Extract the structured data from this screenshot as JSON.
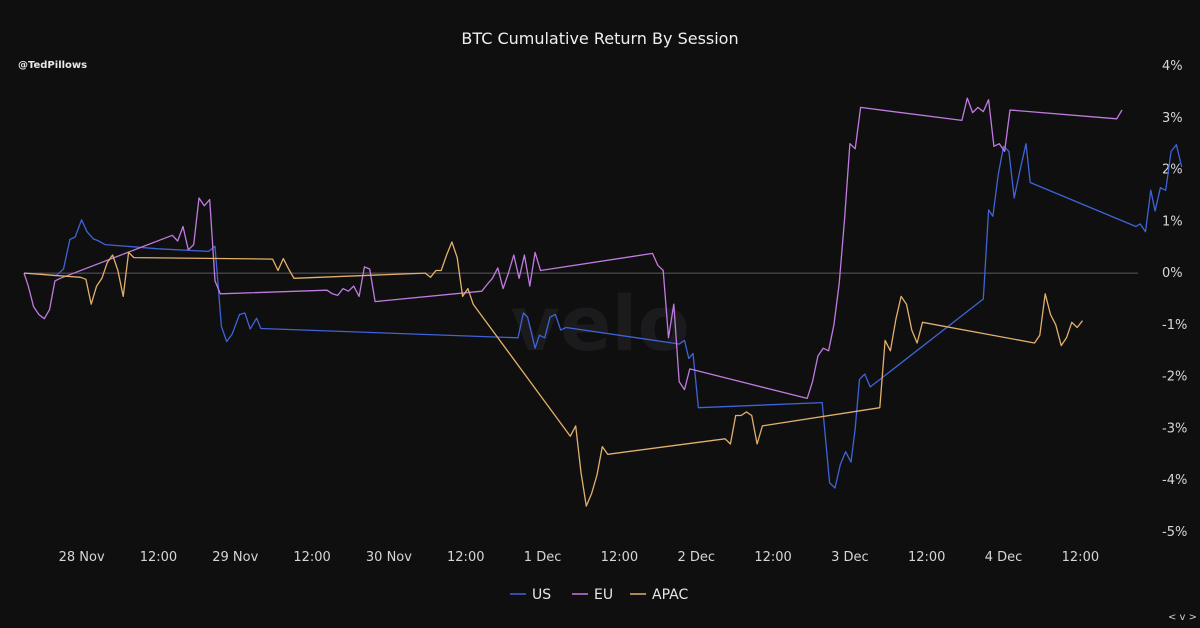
{
  "handle": "@TedPillows",
  "watermark": "velo",
  "nav_label": "< v >",
  "colors": {
    "US": "#3f63d8",
    "EU": "#c07be0",
    "APAC": "#e2b06c",
    "zero_line": "#5a5a5e"
  },
  "chart_data": {
    "type": "line",
    "title": "BTC Cumulative Return By Session",
    "x_unit": "datetime",
    "xlim": [
      "2023-11-27T15:00",
      "2023-12-04T21:00"
    ],
    "x_ticks": [
      {
        "t": "2023-11-28T00:00",
        "label": "28 Nov"
      },
      {
        "t": "2023-11-28T12:00",
        "label": "12:00"
      },
      {
        "t": "2023-11-29T00:00",
        "label": "29 Nov"
      },
      {
        "t": "2023-11-29T12:00",
        "label": "12:00"
      },
      {
        "t": "2023-11-30T00:00",
        "label": "30 Nov"
      },
      {
        "t": "2023-11-30T12:00",
        "label": "12:00"
      },
      {
        "t": "2023-12-01T00:00",
        "label": "1 Dec"
      },
      {
        "t": "2023-12-01T12:00",
        "label": "12:00"
      },
      {
        "t": "2023-12-02T00:00",
        "label": "2 Dec"
      },
      {
        "t": "2023-12-02T12:00",
        "label": "12:00"
      },
      {
        "t": "2023-12-03T00:00",
        "label": "3 Dec"
      },
      {
        "t": "2023-12-03T12:00",
        "label": "12:00"
      },
      {
        "t": "2023-12-04T00:00",
        "label": "4 Dec"
      },
      {
        "t": "2023-12-04T12:00",
        "label": "12:00"
      }
    ],
    "ylim": [
      -5,
      4
    ],
    "y_ticks": [
      4,
      3,
      2,
      1,
      0,
      -1,
      -2,
      -3,
      -4,
      -5
    ],
    "y_tick_labels": [
      "4%",
      "3%",
      "2%",
      "1%",
      "0%",
      "-1%",
      "-2%",
      "-3%",
      "-4%",
      "-5%"
    ],
    "y_axis_side": "right",
    "grid": false,
    "zero_line": true,
    "legend_position": "bottom-center",
    "series": [
      {
        "name": "US",
        "points": [
          [
            "2023-11-27T15:00",
            0.0
          ],
          [
            "2023-11-27T17:40",
            -0.02
          ],
          [
            "2023-11-27T20:00",
            -0.05
          ],
          [
            "2023-11-27T21:10",
            0.08
          ],
          [
            "2023-11-27T22:10",
            0.65
          ],
          [
            "2023-11-27T23:00",
            0.7
          ],
          [
            "2023-11-28T00:00",
            1.03
          ],
          [
            "2023-11-28T00:50",
            0.8
          ],
          [
            "2023-11-28T01:50",
            0.66
          ],
          [
            "2023-11-28T02:40",
            0.62
          ],
          [
            "2023-11-28T03:40",
            0.55
          ],
          [
            "2023-11-28T12:00",
            0.47
          ],
          [
            "2023-11-28T19:50",
            0.42
          ],
          [
            "2023-11-28T20:50",
            0.52
          ],
          [
            "2023-11-28T21:50",
            -1.03
          ],
          [
            "2023-11-28T22:40",
            -1.32
          ],
          [
            "2023-11-28T23:30",
            -1.18
          ],
          [
            "2023-11-29T00:40",
            -0.8
          ],
          [
            "2023-11-29T01:30",
            -0.77
          ],
          [
            "2023-11-29T02:20",
            -1.08
          ],
          [
            "2023-11-29T03:20",
            -0.87
          ],
          [
            "2023-11-29T04:00",
            -1.07
          ],
          [
            "2023-11-30T20:10",
            -1.25
          ],
          [
            "2023-11-30T21:00",
            -0.77
          ],
          [
            "2023-11-30T21:40",
            -0.85
          ],
          [
            "2023-11-30T22:50",
            -1.45
          ],
          [
            "2023-11-30T23:30",
            -1.2
          ],
          [
            "2023-12-01T00:20",
            -1.25
          ],
          [
            "2023-12-01T01:10",
            -0.85
          ],
          [
            "2023-12-01T02:00",
            -0.8
          ],
          [
            "2023-12-01T02:50",
            -1.1
          ],
          [
            "2023-12-01T03:40",
            -1.05
          ],
          [
            "2023-12-01T21:20",
            -1.37
          ],
          [
            "2023-12-01T22:10",
            -1.3
          ],
          [
            "2023-12-01T22:50",
            -1.65
          ],
          [
            "2023-12-01T23:30",
            -1.55
          ],
          [
            "2023-12-02T00:20",
            -2.6
          ],
          [
            "2023-12-02T19:40",
            -2.5
          ],
          [
            "2023-12-02T20:50",
            -4.05
          ],
          [
            "2023-12-02T21:40",
            -4.15
          ],
          [
            "2023-12-02T22:30",
            -3.7
          ],
          [
            "2023-12-02T23:20",
            -3.45
          ],
          [
            "2023-12-03T00:10",
            -3.65
          ],
          [
            "2023-12-03T00:50",
            -3.0
          ],
          [
            "2023-12-03T01:30",
            -2.05
          ],
          [
            "2023-12-03T02:20",
            -1.95
          ],
          [
            "2023-12-03T03:10",
            -2.2
          ],
          [
            "2023-12-03T20:50",
            -0.5
          ],
          [
            "2023-12-03T21:40",
            1.22
          ],
          [
            "2023-12-03T22:20",
            1.1
          ],
          [
            "2023-12-03T23:10",
            1.9
          ],
          [
            "2023-12-04T00:00",
            2.45
          ],
          [
            "2023-12-04T00:50",
            2.35
          ],
          [
            "2023-12-04T01:40",
            1.45
          ],
          [
            "2023-12-04T02:30",
            1.95
          ],
          [
            "2023-12-04T03:30",
            2.5
          ],
          [
            "2023-12-04T04:10",
            1.75
          ],
          [
            "2023-12-04T20:40",
            0.9
          ],
          [
            "2023-12-04T21:20",
            0.95
          ],
          [
            "2023-12-04T22:10",
            0.8
          ],
          [
            "2023-12-04T23:00",
            1.6
          ],
          [
            "2023-12-04T23:40",
            1.2
          ],
          [
            "2023-12-05T00:30",
            1.65
          ],
          [
            "2023-12-05T01:20",
            1.6
          ],
          [
            "2023-12-05T02:10",
            2.35
          ],
          [
            "2023-12-05T03:00",
            2.48
          ],
          [
            "2023-12-05T03:50",
            2.05
          ]
        ]
      },
      {
        "name": "EU",
        "points": [
          [
            "2023-11-27T15:00",
            0.0
          ],
          [
            "2023-11-27T15:40",
            -0.25
          ],
          [
            "2023-11-27T16:30",
            -0.65
          ],
          [
            "2023-11-27T17:20",
            -0.8
          ],
          [
            "2023-11-27T18:10",
            -0.88
          ],
          [
            "2023-11-27T19:00",
            -0.7
          ],
          [
            "2023-11-27T19:50",
            -0.15
          ],
          [
            "2023-11-27T20:40",
            -0.1
          ],
          [
            "2023-11-28T14:10",
            0.73
          ],
          [
            "2023-11-28T15:00",
            0.62
          ],
          [
            "2023-11-28T15:50",
            0.9
          ],
          [
            "2023-11-28T16:40",
            0.45
          ],
          [
            "2023-11-28T17:30",
            0.55
          ],
          [
            "2023-11-28T18:20",
            1.45
          ],
          [
            "2023-11-28T19:10",
            1.3
          ],
          [
            "2023-11-28T20:00",
            1.42
          ],
          [
            "2023-11-28T20:50",
            -0.15
          ],
          [
            "2023-11-28T21:40",
            -0.4
          ],
          [
            "2023-11-29T14:20",
            -0.33
          ],
          [
            "2023-11-29T15:10",
            -0.4
          ],
          [
            "2023-11-29T16:00",
            -0.43
          ],
          [
            "2023-11-29T16:50",
            -0.3
          ],
          [
            "2023-11-29T17:40",
            -0.35
          ],
          [
            "2023-11-29T18:30",
            -0.25
          ],
          [
            "2023-11-29T19:20",
            -0.45
          ],
          [
            "2023-11-29T20:10",
            0.12
          ],
          [
            "2023-11-29T21:00",
            0.08
          ],
          [
            "2023-11-29T21:50",
            -0.55
          ],
          [
            "2023-11-30T14:30",
            -0.35
          ],
          [
            "2023-11-30T15:20",
            -0.22
          ],
          [
            "2023-11-30T16:10",
            -0.1
          ],
          [
            "2023-11-30T17:00",
            0.1
          ],
          [
            "2023-11-30T17:50",
            -0.3
          ],
          [
            "2023-11-30T18:40",
            0.0
          ],
          [
            "2023-11-30T19:30",
            0.35
          ],
          [
            "2023-11-30T20:20",
            -0.1
          ],
          [
            "2023-11-30T21:10",
            0.35
          ],
          [
            "2023-11-30T22:00",
            -0.25
          ],
          [
            "2023-11-30T22:50",
            0.4
          ],
          [
            "2023-11-30T23:40",
            0.05
          ],
          [
            "2023-12-01T17:10",
            0.38
          ],
          [
            "2023-12-01T18:00",
            0.15
          ],
          [
            "2023-12-01T18:50",
            0.05
          ],
          [
            "2023-12-01T19:40",
            -1.25
          ],
          [
            "2023-12-01T20:30",
            -0.6
          ],
          [
            "2023-12-01T21:20",
            -2.1
          ],
          [
            "2023-12-01T22:10",
            -2.25
          ],
          [
            "2023-12-01T23:00",
            -1.85
          ],
          [
            "2023-12-02T17:20",
            -2.42
          ],
          [
            "2023-12-02T18:10",
            -2.1
          ],
          [
            "2023-12-02T19:00",
            -1.6
          ],
          [
            "2023-12-02T19:50",
            -1.45
          ],
          [
            "2023-12-02T20:40",
            -1.5
          ],
          [
            "2023-12-02T21:30",
            -1.0
          ],
          [
            "2023-12-02T22:20",
            -0.2
          ],
          [
            "2023-12-02T23:10",
            1.05
          ],
          [
            "2023-12-03T00:00",
            2.5
          ],
          [
            "2023-12-03T00:50",
            2.4
          ],
          [
            "2023-12-03T01:40",
            3.2
          ],
          [
            "2023-12-03T17:30",
            2.95
          ],
          [
            "2023-12-03T18:20",
            3.38
          ],
          [
            "2023-12-03T19:10",
            3.1
          ],
          [
            "2023-12-03T20:00",
            3.2
          ],
          [
            "2023-12-03T20:50",
            3.12
          ],
          [
            "2023-12-03T21:40",
            3.35
          ],
          [
            "2023-12-03T22:30",
            2.45
          ],
          [
            "2023-12-03T23:20",
            2.5
          ],
          [
            "2023-12-04T00:10",
            2.35
          ],
          [
            "2023-12-04T01:00",
            3.15
          ],
          [
            "2023-12-04T17:40",
            2.98
          ],
          [
            "2023-12-04T18:30",
            3.15
          ]
        ]
      },
      {
        "name": "APAC",
        "points": [
          [
            "2023-11-27T15:00",
            0.0
          ],
          [
            "2023-11-27T23:50",
            -0.08
          ],
          [
            "2023-11-28T00:40",
            -0.12
          ],
          [
            "2023-11-28T01:30",
            -0.6
          ],
          [
            "2023-11-28T02:20",
            -0.25
          ],
          [
            "2023-11-28T03:10",
            -0.1
          ],
          [
            "2023-11-28T04:00",
            0.2
          ],
          [
            "2023-11-28T04:50",
            0.35
          ],
          [
            "2023-11-28T05:40",
            0.05
          ],
          [
            "2023-11-28T06:30",
            -0.45
          ],
          [
            "2023-11-28T07:20",
            0.4
          ],
          [
            "2023-11-28T08:10",
            0.3
          ],
          [
            "2023-11-29T05:50",
            0.27
          ],
          [
            "2023-11-29T06:40",
            0.05
          ],
          [
            "2023-11-29T07:30",
            0.28
          ],
          [
            "2023-11-29T08:20",
            0.08
          ],
          [
            "2023-11-29T09:10",
            -0.1
          ],
          [
            "2023-11-30T05:40",
            0.0
          ],
          [
            "2023-11-30T06:30",
            -0.08
          ],
          [
            "2023-11-30T07:20",
            0.05
          ],
          [
            "2023-11-30T08:10",
            0.05
          ],
          [
            "2023-11-30T09:00",
            0.35
          ],
          [
            "2023-11-30T09:50",
            0.6
          ],
          [
            "2023-11-30T10:40",
            0.3
          ],
          [
            "2023-11-30T11:30",
            -0.45
          ],
          [
            "2023-11-30T12:20",
            -0.3
          ],
          [
            "2023-11-30T13:10",
            -0.6
          ],
          [
            "2023-12-01T04:20",
            -3.15
          ],
          [
            "2023-12-01T05:10",
            -2.95
          ],
          [
            "2023-12-01T06:00",
            -3.85
          ],
          [
            "2023-12-01T06:50",
            -4.5
          ],
          [
            "2023-12-01T07:40",
            -4.25
          ],
          [
            "2023-12-01T08:30",
            -3.9
          ],
          [
            "2023-12-01T09:20",
            -3.35
          ],
          [
            "2023-12-01T10:10",
            -3.5
          ],
          [
            "2023-12-02T04:30",
            -3.2
          ],
          [
            "2023-12-02T05:20",
            -3.3
          ],
          [
            "2023-12-02T06:10",
            -2.75
          ],
          [
            "2023-12-02T07:00",
            -2.75
          ],
          [
            "2023-12-02T07:50",
            -2.68
          ],
          [
            "2023-12-02T08:40",
            -2.75
          ],
          [
            "2023-12-02T09:30",
            -3.3
          ],
          [
            "2023-12-02T10:20",
            -2.95
          ],
          [
            "2023-12-03T04:40",
            -2.6
          ],
          [
            "2023-12-03T05:30",
            -1.3
          ],
          [
            "2023-12-03T06:20",
            -1.5
          ],
          [
            "2023-12-03T07:10",
            -0.9
          ],
          [
            "2023-12-03T08:00",
            -0.45
          ],
          [
            "2023-12-03T08:50",
            -0.6
          ],
          [
            "2023-12-03T09:40",
            -1.1
          ],
          [
            "2023-12-03T10:30",
            -1.35
          ],
          [
            "2023-12-03T11:20",
            -0.95
          ],
          [
            "2023-12-04T04:50",
            -1.35
          ],
          [
            "2023-12-04T05:40",
            -1.2
          ],
          [
            "2023-12-04T06:30",
            -0.4
          ],
          [
            "2023-12-04T07:20",
            -0.8
          ],
          [
            "2023-12-04T08:10",
            -1.0
          ],
          [
            "2023-12-04T09:00",
            -1.4
          ],
          [
            "2023-12-04T09:50",
            -1.25
          ],
          [
            "2023-12-04T10:40",
            -0.95
          ],
          [
            "2023-12-04T11:30",
            -1.05
          ],
          [
            "2023-12-04T12:20",
            -0.92
          ]
        ]
      }
    ]
  }
}
